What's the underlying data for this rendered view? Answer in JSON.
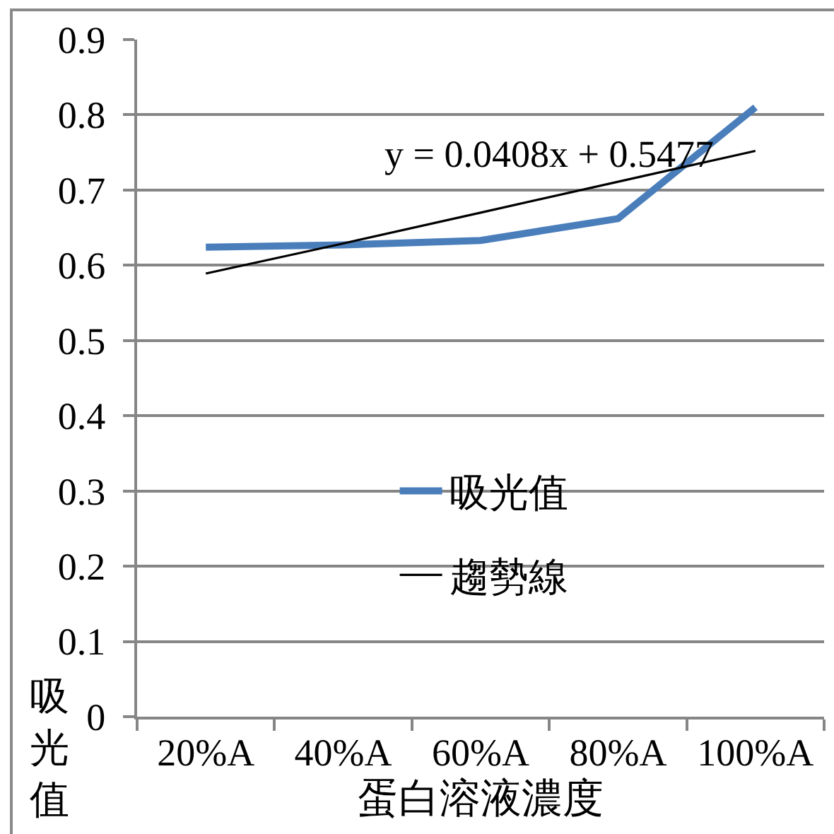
{
  "chart_data": {
    "type": "line",
    "categories": [
      "20%A",
      "40%A",
      "60%A",
      "80%A",
      "100%A"
    ],
    "series": [
      {
        "name": "吸光值",
        "color": "#4a7ebb",
        "values": [
          0.624,
          0.627,
          0.633,
          0.662,
          0.81
        ]
      },
      {
        "name": "趨勢線",
        "type": "line",
        "color": "#000000",
        "values": [
          0.589,
          0.629,
          0.67,
          0.711,
          0.752
        ]
      }
    ],
    "xlabel": "蛋白溶液濃度",
    "ylabel": "吸光值",
    "annotations": [
      "y = 0.0408x + 0.5477"
    ],
    "ylim": [
      0,
      0.9
    ],
    "yticks": [
      0,
      0.1,
      0.2,
      0.3,
      0.4,
      0.5,
      0.6,
      0.7,
      0.8,
      0.9
    ],
    "grid": "y",
    "legend": "bottom"
  }
}
